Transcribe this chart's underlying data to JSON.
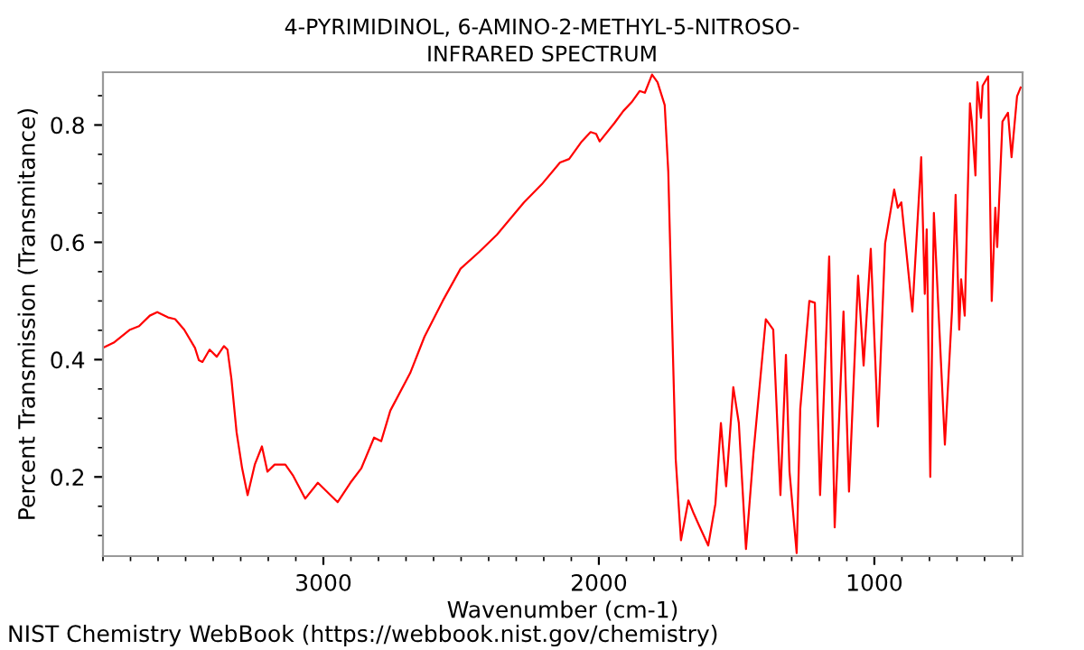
{
  "chart_data": {
    "type": "line",
    "title": "4-PYRIMIDINOL, 6-AMINO-2-METHYL-5-NITROSO-\nINFRARED SPECTRUM",
    "xlabel": "Wavenumber (cm-1)",
    "ylabel": "Percent Transmission (Transmitance)",
    "annotations": [
      "NIST Chemistry WebBook (https://webbook.nist.gov/chemistry)"
    ],
    "xlim": [
      3800,
      462
    ],
    "ylim": [
      0.065,
      0.89
    ],
    "xticks": [
      3000,
      2000,
      1000
    ],
    "yticks": [
      0.2,
      0.4,
      0.6,
      0.8
    ],
    "grid": false,
    "legend": false,
    "marker": "none",
    "line_style": "solid",
    "series": [
      {
        "color": "#ff0000",
        "x": [
          3800,
          3761,
          3702,
          3669,
          3630,
          3603,
          3564,
          3538,
          3505,
          3466,
          3452,
          3439,
          3413,
          3387,
          3361,
          3348,
          3334,
          3315,
          3295,
          3275,
          3249,
          3223,
          3203,
          3177,
          3138,
          3111,
          3066,
          3020,
          2974,
          2948,
          2902,
          2862,
          2816,
          2790,
          2757,
          2685,
          2633,
          2567,
          2502,
          2436,
          2370,
          2272,
          2207,
          2141,
          2108,
          2062,
          2030,
          2010,
          1997,
          1944,
          1911,
          1879,
          1852,
          1833,
          1807,
          1787,
          1761,
          1748,
          1734,
          1721,
          1702,
          1675,
          1656,
          1636,
          1603,
          1577,
          1557,
          1538,
          1512,
          1492,
          1466,
          1439,
          1394,
          1367,
          1341,
          1321,
          1308,
          1282,
          1269,
          1236,
          1216,
          1197,
          1164,
          1144,
          1112,
          1092,
          1059,
          1039,
          1013,
          987,
          961,
          928,
          915,
          902,
          862,
          830,
          817,
          810,
          797,
          784,
          744,
          718,
          705,
          692,
          685,
          672,
          653,
          646,
          633,
          626,
          613,
          607,
          587,
          574,
          561,
          554,
          535,
          515,
          502,
          482,
          469
        ],
        "values": [
          0.42,
          0.429,
          0.451,
          0.457,
          0.475,
          0.481,
          0.472,
          0.469,
          0.451,
          0.42,
          0.399,
          0.396,
          0.417,
          0.405,
          0.423,
          0.417,
          0.368,
          0.276,
          0.215,
          0.169,
          0.221,
          0.252,
          0.209,
          0.221,
          0.221,
          0.203,
          0.163,
          0.19,
          0.169,
          0.157,
          0.19,
          0.215,
          0.267,
          0.261,
          0.313,
          0.377,
          0.439,
          0.5,
          0.555,
          0.583,
          0.613,
          0.668,
          0.699,
          0.736,
          0.742,
          0.772,
          0.788,
          0.785,
          0.772,
          0.803,
          0.824,
          0.84,
          0.858,
          0.855,
          0.886,
          0.873,
          0.834,
          0.72,
          0.46,
          0.23,
          0.092,
          0.16,
          0.138,
          0.117,
          0.083,
          0.154,
          0.292,
          0.184,
          0.353,
          0.292,
          0.077,
          0.24,
          0.469,
          0.451,
          0.169,
          0.408,
          0.209,
          0.07,
          0.316,
          0.5,
          0.497,
          0.169,
          0.576,
          0.114,
          0.482,
          0.175,
          0.543,
          0.39,
          0.589,
          0.286,
          0.598,
          0.69,
          0.659,
          0.668,
          0.482,
          0.745,
          0.512,
          0.622,
          0.2,
          0.65,
          0.255,
          0.485,
          0.681,
          0.451,
          0.537,
          0.475,
          0.837,
          0.806,
          0.714,
          0.873,
          0.812,
          0.867,
          0.883,
          0.5,
          0.659,
          0.592,
          0.806,
          0.821,
          0.745,
          0.849,
          0.864
        ]
      }
    ]
  }
}
